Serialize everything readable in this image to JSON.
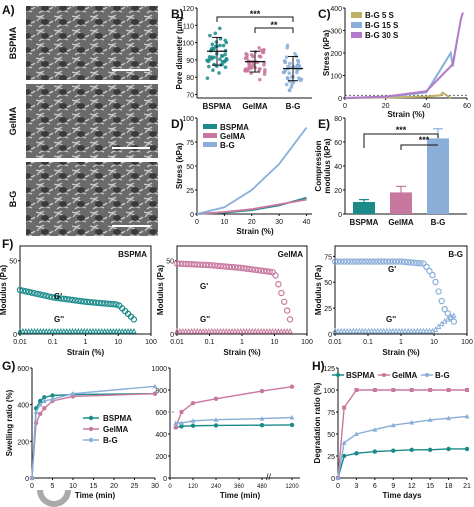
{
  "panels": {
    "A": {
      "letter": "A)",
      "rows": [
        "BSPMA",
        "GelMA",
        "B-G"
      ]
    },
    "B": {
      "letter": "B)"
    },
    "C": {
      "letter": "C)"
    },
    "D": {
      "letter": "D)"
    },
    "E": {
      "letter": "E)"
    },
    "F": {
      "letter": "F)"
    },
    "G": {
      "letter": "G)"
    },
    "H": {
      "letter": "H)"
    }
  },
  "colors": {
    "bspma": "#1a8a8a",
    "gelma": "#c8789e",
    "bg": "#8aaed8",
    "c5": "#c0b068",
    "c15": "#8aaed8",
    "c30": "#b27ac8"
  },
  "chart_data": [
    {
      "id": "B",
      "type": "scatter",
      "categories": [
        "BSPMA",
        "GelMA",
        "B-G"
      ],
      "means": [
        95,
        89,
        85
      ],
      "sd": [
        8,
        6,
        7
      ],
      "ylabel": "Pore diameter (μm)",
      "yticks": [
        70,
        80,
        90,
        100,
        110,
        120
      ],
      "ylim": [
        68,
        120
      ],
      "annotations": [
        "***",
        "**"
      ]
    },
    {
      "id": "C",
      "type": "line",
      "series": [
        {
          "name": "B-G 5 S",
          "x": [
            0,
            20,
            40,
            47,
            48,
            52
          ],
          "y": [
            0,
            2,
            6,
            12,
            24,
            0
          ]
        },
        {
          "name": "B-G 15 S",
          "x": [
            0,
            20,
            40,
            52,
            53,
            55
          ],
          "y": [
            0,
            5,
            25,
            200,
            140,
            250
          ]
        },
        {
          "name": "B-G 30 S",
          "x": [
            0,
            20,
            40,
            53,
            57,
            58
          ],
          "y": [
            0,
            6,
            30,
            150,
            350,
            380
          ]
        }
      ],
      "xlabel": "Strain (%)",
      "ylabel": "Stress (kPa)",
      "xticks": [
        0,
        20,
        40,
        60
      ],
      "yticks": [
        0,
        100,
        200,
        300,
        400
      ],
      "xlim": [
        0,
        60
      ],
      "ylim": [
        0,
        400
      ]
    },
    {
      "id": "D",
      "type": "line",
      "series": [
        {
          "name": "BSPMA",
          "x": [
            0,
            10,
            20,
            30,
            40
          ],
          "y": [
            0,
            1.5,
            4,
            9,
            17
          ]
        },
        {
          "name": "GelMA",
          "x": [
            0,
            10,
            20,
            30,
            40
          ],
          "y": [
            0,
            2,
            5,
            10,
            15
          ]
        },
        {
          "name": "B-G",
          "x": [
            0,
            10,
            20,
            30,
            40
          ],
          "y": [
            0,
            7,
            25,
            52,
            90
          ]
        }
      ],
      "xlabel": "Strain (%)",
      "ylabel": "Stress (kPa)",
      "xticks": [
        0,
        10,
        20,
        30,
        40
      ],
      "yticks": [
        0,
        25,
        50,
        75,
        100
      ],
      "xlim": [
        0,
        42
      ],
      "ylim": [
        0,
        100
      ]
    },
    {
      "id": "E",
      "type": "bar",
      "categories": [
        "BSPMA",
        "GelMA",
        "B-G"
      ],
      "values": [
        10,
        18,
        63
      ],
      "errors": [
        2,
        5,
        8
      ],
      "ylabel": "Compression modulus (kPa)",
      "yticks": [
        0,
        20,
        40,
        60,
        80
      ],
      "ylim": [
        0,
        80
      ],
      "annotations": [
        "***",
        "***"
      ]
    },
    {
      "id": "F1",
      "type": "scatter",
      "title": "BSPMA",
      "series": [
        {
          "name": "G'",
          "x": [
            0.01,
            0.1,
            1,
            10,
            30
          ],
          "y": [
            30,
            25,
            22,
            20,
            10
          ]
        },
        {
          "name": "G''",
          "x": [
            0.01,
            0.1,
            1,
            10,
            30
          ],
          "y": [
            2,
            2,
            2,
            2,
            2
          ]
        }
      ],
      "xlabel": "Strain (%)",
      "ylabel": "Modulus (Pa)",
      "xticks": [
        "0.01",
        "0.1",
        "1",
        "10",
        "100"
      ],
      "yticks": [
        0,
        50
      ],
      "xlim": [
        0.01,
        100
      ],
      "ylim": [
        0,
        60
      ]
    },
    {
      "id": "F2",
      "type": "scatter",
      "title": "GelMA",
      "series": [
        {
          "name": "G'",
          "x": [
            0.01,
            0.1,
            1,
            10,
            30
          ],
          "y": [
            48,
            47,
            45,
            42,
            10
          ]
        },
        {
          "name": "G''",
          "x": [
            0.01,
            0.1,
            1,
            10,
            30
          ],
          "y": [
            2,
            2,
            2,
            2,
            2
          ]
        }
      ],
      "xlabel": "Strain (%)",
      "ylabel": "Modulus (Pa)",
      "xticks": [
        "0.01",
        "0.1",
        "1",
        "10",
        "100"
      ],
      "yticks": [
        0,
        50
      ],
      "xlim": [
        0.01,
        100
      ],
      "ylim": [
        0,
        60
      ]
    },
    {
      "id": "F3",
      "type": "scatter",
      "title": "B-G",
      "series": [
        {
          "name": "G'",
          "x": [
            0.01,
            0.1,
            1,
            5,
            10,
            20,
            40
          ],
          "y": [
            70,
            70,
            70,
            68,
            55,
            25,
            12
          ]
        },
        {
          "name": "G''",
          "x": [
            0.01,
            0.1,
            1,
            10,
            20,
            40
          ],
          "y": [
            3,
            3,
            3,
            3,
            12,
            18
          ]
        }
      ],
      "xlabel": "Strain (%)",
      "ylabel": "Modulus (Pa)",
      "xticks": [
        "0.01",
        "0.1",
        "1",
        "10",
        "100"
      ],
      "yticks": [
        0,
        25,
        50,
        75
      ],
      "xlim": [
        0.01,
        100
      ],
      "ylim": [
        0,
        85
      ]
    },
    {
      "id": "G",
      "type": "line",
      "series": [
        {
          "name": "BSPMA",
          "x": [
            0,
            1,
            2,
            3,
            5,
            10,
            30,
            60,
            120,
            240,
            480,
            1200
          ],
          "y": [
            0,
            380,
            420,
            440,
            450,
            455,
            460,
            470,
            475,
            478,
            480,
            482
          ]
        },
        {
          "name": "GelMA",
          "x": [
            0,
            1,
            2,
            3,
            5,
            10,
            30,
            60,
            120,
            240,
            480,
            1200
          ],
          "y": [
            0,
            300,
            350,
            380,
            420,
            445,
            460,
            600,
            680,
            720,
            790,
            830
          ]
        },
        {
          "name": "B-G",
          "x": [
            0,
            1,
            2,
            3,
            5,
            10,
            30,
            60,
            120,
            240,
            480,
            1200
          ],
          "y": [
            0,
            360,
            400,
            420,
            430,
            460,
            500,
            500,
            520,
            530,
            540,
            550
          ]
        }
      ],
      "xlabel": "Time (min)",
      "ylabel": "Swelling ratio (%)",
      "xticks_left": [
        0,
        5,
        10,
        15,
        20,
        25,
        30
      ],
      "xticks_right": [
        0,
        120,
        240,
        360,
        480,
        1200
      ],
      "yticks_left": [
        0,
        200,
        400,
        600
      ],
      "yticks_right": [
        0,
        200,
        400,
        600,
        800,
        1000
      ]
    },
    {
      "id": "H",
      "type": "line",
      "series": [
        {
          "name": "BSPMA",
          "x": [
            0,
            1,
            3,
            6,
            9,
            12,
            15,
            18,
            21
          ],
          "y": [
            0,
            25,
            28,
            30,
            31,
            32,
            32,
            33,
            33
          ]
        },
        {
          "name": "GelMA",
          "x": [
            0,
            1,
            3,
            6,
            9,
            12,
            15,
            18,
            21
          ],
          "y": [
            0,
            80,
            100,
            100,
            100,
            100,
            100,
            100,
            100
          ]
        },
        {
          "name": "B-G",
          "x": [
            0,
            1,
            3,
            6,
            9,
            12,
            15,
            18,
            21
          ],
          "y": [
            0,
            40,
            50,
            55,
            60,
            63,
            66,
            68,
            70
          ]
        }
      ],
      "xlabel": "Time days",
      "ylabel": "Degradation ratio (%)",
      "xticks": [
        0,
        3,
        6,
        9,
        12,
        15,
        18,
        21
      ],
      "yticks": [
        0,
        25,
        50,
        75,
        100,
        125
      ],
      "xlim": [
        0,
        21
      ],
      "ylim": [
        0,
        125
      ]
    }
  ]
}
